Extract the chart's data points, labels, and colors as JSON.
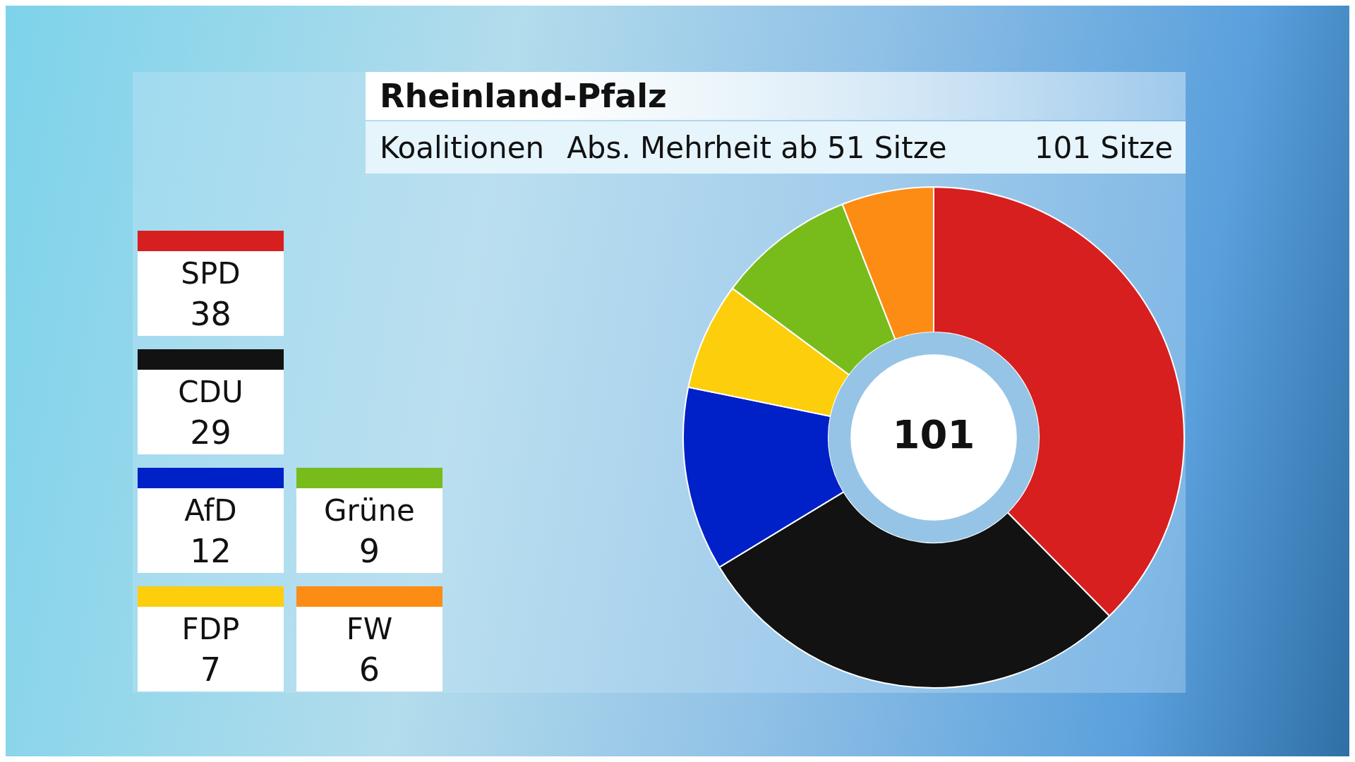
{
  "chart_data": {
    "type": "donut",
    "title": "Rheinland-Pfalz",
    "subtitle": "Koalitionen",
    "annotations": [
      "Abs. Mehrheit ab 51 Sitze",
      "101 Sitze",
      "101"
    ],
    "categories": [
      "SPD",
      "CDU",
      "AfD",
      "FDP",
      "Grüne",
      "FW"
    ],
    "values": [
      38,
      29,
      12,
      7,
      9,
      6
    ],
    "colors": [
      "#d71f1f",
      "#121212",
      "#0020c8",
      "#fcce0c",
      "#78bc1c",
      "#fc8c14"
    ],
    "legend": "left",
    "data_labels": true
  }
}
